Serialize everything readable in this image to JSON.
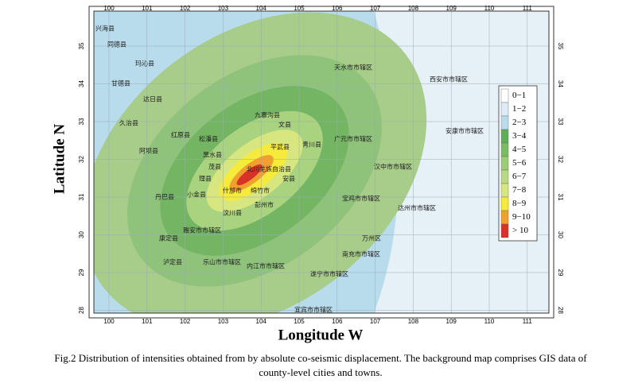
{
  "map": {
    "axes": {
      "x_title": "Longitude W",
      "y_title": "Latitude N",
      "x_ticks": [
        "100",
        "101",
        "102",
        "103",
        "104",
        "105",
        "106",
        "107",
        "108",
        "109",
        "110",
        "111"
      ],
      "y_ticks": [
        "35",
        "34",
        "33",
        "32",
        "31",
        "30",
        "29",
        "28"
      ]
    },
    "legend": {
      "items": [
        {
          "label": "0−1",
          "color": "#ffffff"
        },
        {
          "label": "1−2",
          "color": "#dcebf5"
        },
        {
          "label": "2−3",
          "color": "#b8dcec"
        },
        {
          "label": "3−4",
          "color": "#5fae5a"
        },
        {
          "label": "4−5",
          "color": "#79bd63"
        },
        {
          "label": "5−6",
          "color": "#9ccc76"
        },
        {
          "label": "6−7",
          "color": "#b9d982"
        },
        {
          "label": "7−8",
          "color": "#d7e67e"
        },
        {
          "label": "8−9",
          "color": "#f6ea3c"
        },
        {
          "label": "9−10",
          "color": "#f0a030"
        },
        {
          "label": "> 10",
          "color": "#d83228"
        }
      ]
    },
    "places": [
      "兴海县",
      "同德县",
      "玛沁县",
      "甘德县",
      "达日县",
      "久治县",
      "阿坝县",
      "红原县",
      "松潘县",
      "九寨沟县",
      "文县",
      "平武县",
      "青川县",
      "广元市市辖区",
      "茂县",
      "北川羌族自治县",
      "安县",
      "什邡市",
      "绵竹市",
      "彭州市",
      "汶川县",
      "理县",
      "黑水县",
      "小金县",
      "丹巴县",
      "康定县",
      "泸定县",
      "天水市市辖区",
      "汉中市市辖区",
      "宝鸡市市辖区",
      "达州市市辖区",
      "万州区",
      "南充市市辖区",
      "遂宁市市辖区",
      "内江市市辖区",
      "乐山市市辖区",
      "雅安市市辖区",
      "宜宾市市辖区",
      "西安市市辖区",
      "安康市市辖区"
    ],
    "caption": [
      "Fig.2 Distribution of intensities obtained from by absolute co-seismic displacement. The background map comprises GIS data of",
      "county-level cities and towns."
    ]
  }
}
